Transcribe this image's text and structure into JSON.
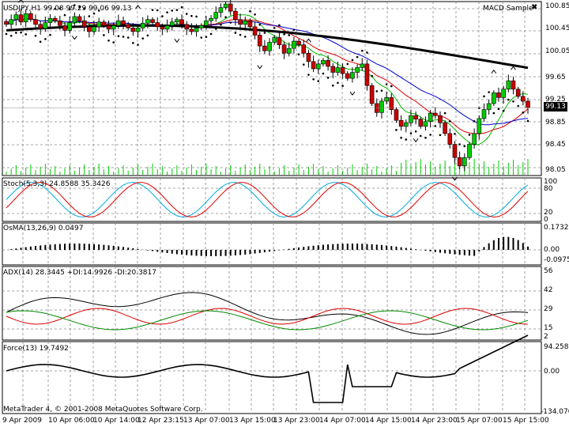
{
  "main": {
    "title": "USDJPY,H1  99.08 99.29 99.06 99.13",
    "indicator_label": "MACD Sample",
    "close_icon": "close-icon",
    "yticks": [
      "100.85",
      "100.45",
      "100.05",
      "99.65",
      "99.25",
      "98.85",
      "98.45",
      "98.05"
    ],
    "current_price": "99.13",
    "ylim": [
      98.0,
      100.9
    ]
  },
  "stoch": {
    "title": "Stoch(5,3,3) 24.8588 35.3426",
    "yticks": [
      "100",
      "80",
      "20",
      "0"
    ]
  },
  "osma": {
    "title": "OsMA(13,26,9) 0.0497",
    "yticks": [
      "0.1732",
      "0.00",
      "-0.0975"
    ]
  },
  "adx": {
    "title": "ADX(14) 28.3445  +DI:14.9926  -DI:20.3817",
    "yticks": [
      "56",
      "42",
      "29",
      "15",
      "2"
    ]
  },
  "force": {
    "title": "Force(13) 19.7492",
    "yticks": [
      "94.2586",
      "0.00",
      "-134.0701"
    ]
  },
  "footer": "MetaTrader 4, © 2001-2008 MetaQuotes Software Corp.",
  "xlabels": [
    "9 Apr 2009",
    "10 Apr 06:00",
    "10 Apr 14:00",
    "12 Apr 23:15",
    "13 Apr 07:00",
    "13 Apr 15:00",
    "13 Apr 23:00",
    "14 Apr 07:00",
    "14 Apr 15:00",
    "14 Apr 23:00",
    "15 Apr 07:00",
    "15 Apr 15:00"
  ],
  "colors": {
    "bull": "#00cc00",
    "bear": "#cc0000",
    "ma_slow": "#000000",
    "ma_red": "#dd0000",
    "ma_blue": "#0000cc",
    "ma_green": "#00bb00",
    "grid": "#888888",
    "psar": "#000000"
  },
  "chart_data": [
    {
      "type": "candlestick",
      "title": "USDJPY,H1",
      "ylim": [
        98.0,
        100.9
      ],
      "close": [
        100.52,
        100.6,
        100.68,
        100.56,
        100.7,
        100.6,
        100.52,
        100.45,
        100.55,
        100.62,
        100.58,
        100.5,
        100.42,
        100.55,
        100.65,
        100.58,
        100.48,
        100.4,
        100.48,
        100.56,
        100.5,
        100.44,
        100.5,
        100.58,
        100.52,
        100.46,
        100.4,
        100.46,
        100.54,
        100.6,
        100.55,
        100.48,
        100.44,
        100.5,
        100.56,
        100.6,
        100.52,
        100.44,
        100.4,
        100.46,
        100.5,
        100.58,
        100.62,
        100.72,
        100.8,
        100.86,
        100.74,
        100.6,
        100.52,
        100.58,
        100.48,
        100.34,
        100.16,
        100.08,
        100.22,
        100.3,
        100.18,
        100.04,
        100.12,
        100.24,
        100.18,
        100.04,
        99.9,
        99.78,
        99.86,
        99.92,
        99.82,
        99.72,
        99.8,
        99.7,
        99.62,
        99.72,
        99.8,
        99.86,
        99.5,
        99.2,
        99.05,
        99.24,
        99.3,
        99.1,
        98.92,
        98.82,
        98.88,
        99.0,
        98.94,
        98.82,
        98.9,
        99.04,
        99.0,
        98.88,
        98.7,
        98.52,
        98.3,
        98.16,
        98.3,
        98.52,
        98.7,
        98.95,
        99.1,
        99.2,
        99.38,
        99.3,
        99.44,
        99.58,
        99.44,
        99.32,
        99.24,
        99.13
      ],
      "series": [
        {
          "name": "MA slow (black)",
          "values": "computed"
        },
        {
          "name": "MA red",
          "values": "computed"
        },
        {
          "name": "MA blue",
          "values": "computed"
        },
        {
          "name": "MA green",
          "values": "computed"
        }
      ]
    },
    {
      "type": "line",
      "title": "Stoch(5,3,3)",
      "ylim": [
        0,
        100
      ],
      "series": [
        {
          "name": "main",
          "values": [
            24.86
          ]
        },
        {
          "name": "signal",
          "values": [
            35.34
          ]
        }
      ]
    },
    {
      "type": "bar",
      "title": "OsMA(13,26,9)",
      "ylim": [
        -0.0975,
        0.1732
      ],
      "values": [
        0.0497
      ]
    },
    {
      "type": "line",
      "title": "ADX(14)",
      "ylim": [
        2,
        56
      ],
      "series": [
        {
          "name": "ADX",
          "values": [
            28.34
          ]
        },
        {
          "name": "+DI",
          "values": [
            14.99
          ]
        },
        {
          "name": "-DI",
          "values": [
            20.38
          ]
        }
      ]
    },
    {
      "type": "line",
      "title": "Force(13)",
      "ylim": [
        -134.0701,
        94.2586
      ],
      "values": [
        19.75
      ]
    }
  ]
}
